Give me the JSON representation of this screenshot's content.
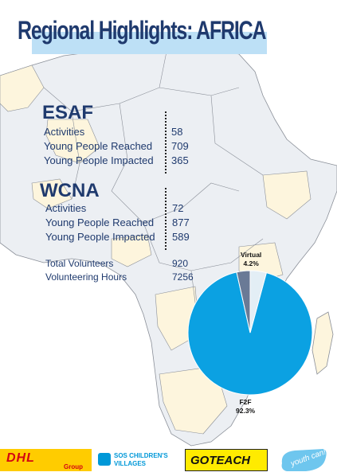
{
  "page": {
    "title": "Regional Highlights: AFRICA"
  },
  "esaf": {
    "heading": "ESAF",
    "rows": [
      {
        "label": "Activities",
        "value": "58"
      },
      {
        "label": "Young People Reached",
        "value": "709"
      },
      {
        "label": "Young People Impacted",
        "value": "365"
      }
    ]
  },
  "wcna": {
    "heading": "WCNA",
    "rows": [
      {
        "label": "Activities",
        "value": "72"
      },
      {
        "label": "Young People Reached",
        "value": "877"
      },
      {
        "label": "Young People Impacted",
        "value": "589"
      }
    ]
  },
  "totals": [
    {
      "label": "Total Volunteers",
      "value": "920"
    },
    {
      "label": "Volunteering Hours",
      "value": "7256"
    }
  ],
  "chart_data": {
    "type": "pie",
    "title": "",
    "slices": [
      {
        "name": "F2F",
        "value": 92.3,
        "label": "92.3%",
        "color": "#0ba1e2"
      },
      {
        "name": "Virtual",
        "value": 4.2,
        "label": "4.2%",
        "color": "#e3eef5"
      },
      {
        "name": "",
        "value": 3.5,
        "label": "",
        "color": "#6a7a96"
      }
    ]
  },
  "logos": {
    "dhl": {
      "word": "DHL",
      "group": "Group"
    },
    "sos": {
      "line1": "SOS CHILDREN'S",
      "line2": "VILLAGES"
    },
    "goteach": "GOTEACH",
    "youthcan": "youth can!"
  },
  "colors": {
    "navy": "#1f3a6e",
    "ocean": "#ffffff",
    "land": "#eceff3",
    "highlight_land": "#fdf5dd",
    "border": "#8a8f98"
  }
}
